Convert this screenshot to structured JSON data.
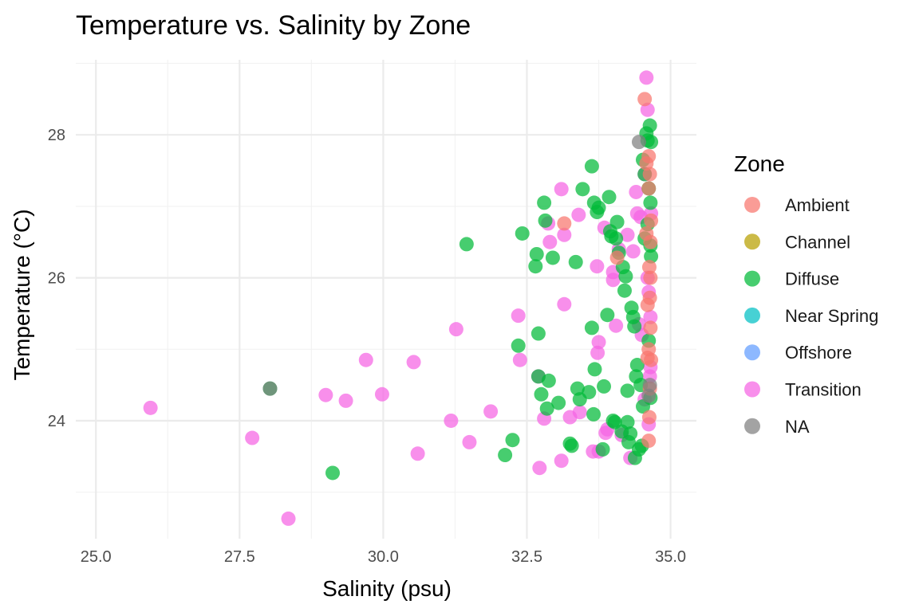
{
  "chart_data": {
    "type": "scatter",
    "title": "Temperature vs. Salinity by Zone",
    "xlabel": "Salinity (psu)",
    "ylabel": "Temperature (°C)",
    "xlim": [
      24.65,
      35.45
    ],
    "ylim": [
      22.35,
      29.05
    ],
    "x_ticks": [
      25.0,
      27.5,
      30.0,
      32.5,
      35.0
    ],
    "x_tick_labels": [
      "25.0",
      "27.5",
      "30.0",
      "32.5",
      "35.0"
    ],
    "y_ticks": [
      24,
      26,
      28
    ],
    "y_tick_labels": [
      "24",
      "26",
      "28"
    ],
    "grid": true,
    "legend": {
      "title": "Zone",
      "position": "right",
      "entries": [
        {
          "name": "Ambient",
          "color": "#F8766D"
        },
        {
          "name": "Channel",
          "color": "#B79F00"
        },
        {
          "name": "Diffuse",
          "color": "#00BA38"
        },
        {
          "name": "Near Spring",
          "color": "#00BFC4"
        },
        {
          "name": "Offshore",
          "color": "#619CFF"
        },
        {
          "name": "Transition",
          "color": "#F564E3"
        },
        {
          "name": "NA",
          "color": "#7F7F7F"
        }
      ]
    },
    "series": [
      {
        "name": "Transition",
        "points": [
          [
            25.95,
            24.18
          ],
          [
            27.72,
            23.76
          ],
          [
            28.35,
            22.63
          ],
          [
            29.0,
            24.36
          ],
          [
            29.35,
            24.28
          ],
          [
            29.7,
            24.85
          ],
          [
            29.98,
            24.37
          ],
          [
            30.53,
            24.82
          ],
          [
            30.6,
            23.54
          ],
          [
            31.18,
            24.0
          ],
          [
            31.27,
            25.28
          ],
          [
            31.5,
            23.7
          ],
          [
            31.87,
            24.13
          ],
          [
            32.35,
            25.47
          ],
          [
            32.38,
            24.85
          ],
          [
            32.7,
            24.62
          ],
          [
            32.72,
            23.34
          ],
          [
            32.8,
            24.03
          ],
          [
            32.87,
            26.76
          ],
          [
            32.9,
            26.5
          ],
          [
            33.1,
            27.24
          ],
          [
            33.1,
            23.44
          ],
          [
            33.15,
            26.6
          ],
          [
            33.15,
            25.63
          ],
          [
            33.25,
            24.05
          ],
          [
            33.4,
            26.88
          ],
          [
            33.42,
            24.12
          ],
          [
            33.65,
            23.57
          ],
          [
            33.72,
            26.16
          ],
          [
            33.73,
            24.95
          ],
          [
            33.75,
            25.1
          ],
          [
            33.75,
            23.57
          ],
          [
            33.85,
            26.7
          ],
          [
            33.87,
            23.83
          ],
          [
            33.9,
            23.88
          ],
          [
            34.0,
            26.08
          ],
          [
            34.0,
            25.97
          ],
          [
            34.05,
            25.33
          ],
          [
            34.1,
            26.4
          ],
          [
            34.15,
            23.8
          ],
          [
            34.25,
            26.6
          ],
          [
            34.3,
            23.48
          ],
          [
            34.35,
            26.37
          ],
          [
            34.4,
            27.2
          ],
          [
            34.42,
            26.9
          ],
          [
            34.45,
            25.35
          ],
          [
            34.48,
            26.85
          ],
          [
            34.5,
            25.2
          ],
          [
            34.55,
            27.45
          ],
          [
            34.55,
            24.3
          ],
          [
            34.58,
            28.8
          ],
          [
            34.6,
            28.35
          ],
          [
            34.6,
            26.0
          ],
          [
            34.62,
            23.95
          ],
          [
            34.62,
            25.8
          ],
          [
            34.64,
            24.62
          ],
          [
            34.65,
            25.45
          ],
          [
            34.65,
            24.75
          ],
          [
            34.66,
            26.9
          ]
        ]
      },
      {
        "name": "Diffuse",
        "points": [
          [
            28.03,
            24.45
          ],
          [
            29.12,
            23.27
          ],
          [
            31.45,
            26.47
          ],
          [
            32.12,
            23.52
          ],
          [
            32.25,
            23.73
          ],
          [
            32.42,
            26.62
          ],
          [
            32.35,
            25.05
          ],
          [
            32.65,
            26.16
          ],
          [
            32.67,
            26.33
          ],
          [
            32.7,
            25.22
          ],
          [
            32.7,
            24.62
          ],
          [
            32.75,
            24.37
          ],
          [
            32.8,
            27.05
          ],
          [
            32.82,
            26.8
          ],
          [
            32.85,
            24.17
          ],
          [
            32.88,
            24.56
          ],
          [
            32.95,
            26.28
          ],
          [
            33.05,
            24.25
          ],
          [
            33.25,
            23.68
          ],
          [
            33.28,
            23.65
          ],
          [
            33.35,
            26.22
          ],
          [
            33.38,
            24.45
          ],
          [
            33.42,
            24.3
          ],
          [
            33.47,
            27.24
          ],
          [
            33.58,
            24.4
          ],
          [
            33.63,
            27.56
          ],
          [
            33.63,
            25.3
          ],
          [
            33.66,
            24.09
          ],
          [
            33.67,
            27.05
          ],
          [
            33.68,
            24.72
          ],
          [
            33.72,
            26.92
          ],
          [
            33.75,
            26.98
          ],
          [
            33.82,
            23.6
          ],
          [
            33.84,
            24.48
          ],
          [
            33.9,
            25.48
          ],
          [
            33.93,
            27.13
          ],
          [
            33.95,
            26.65
          ],
          [
            33.97,
            26.58
          ],
          [
            34.0,
            24.0
          ],
          [
            34.03,
            23.98
          ],
          [
            34.05,
            26.55
          ],
          [
            34.07,
            26.78
          ],
          [
            34.1,
            26.35
          ],
          [
            34.15,
            23.85
          ],
          [
            34.17,
            26.15
          ],
          [
            34.2,
            25.82
          ],
          [
            34.22,
            26.02
          ],
          [
            34.25,
            23.98
          ],
          [
            34.25,
            24.42
          ],
          [
            34.27,
            23.7
          ],
          [
            34.3,
            23.82
          ],
          [
            34.32,
            25.58
          ],
          [
            34.35,
            25.45
          ],
          [
            34.37,
            25.32
          ],
          [
            34.38,
            23.48
          ],
          [
            34.4,
            24.62
          ],
          [
            34.42,
            24.78
          ],
          [
            34.45,
            23.6
          ],
          [
            34.48,
            24.5
          ],
          [
            34.5,
            23.65
          ],
          [
            34.52,
            24.2
          ],
          [
            34.52,
            27.65
          ],
          [
            34.55,
            27.45
          ],
          [
            34.55,
            26.55
          ],
          [
            34.58,
            28.02
          ],
          [
            34.6,
            27.92
          ],
          [
            34.6,
            26.75
          ],
          [
            34.62,
            27.25
          ],
          [
            34.62,
            25.12
          ],
          [
            34.64,
            28.13
          ],
          [
            34.65,
            27.05
          ],
          [
            34.65,
            26.45
          ],
          [
            34.65,
            24.32
          ],
          [
            34.66,
            27.9
          ],
          [
            34.66,
            26.3
          ]
        ]
      },
      {
        "name": "Ambient",
        "points": [
          [
            33.15,
            26.76
          ],
          [
            34.07,
            26.28
          ],
          [
            34.55,
            28.5
          ],
          [
            34.58,
            27.6
          ],
          [
            34.58,
            26.62
          ],
          [
            34.6,
            25.62
          ],
          [
            34.6,
            24.88
          ],
          [
            34.62,
            27.7
          ],
          [
            34.62,
            27.25
          ],
          [
            34.62,
            25.0
          ],
          [
            34.62,
            23.72
          ],
          [
            34.63,
            26.15
          ],
          [
            34.63,
            24.05
          ],
          [
            34.64,
            27.45
          ],
          [
            34.64,
            25.72
          ],
          [
            34.64,
            24.45
          ],
          [
            34.65,
            26.5
          ],
          [
            34.65,
            26.0
          ],
          [
            34.65,
            25.3
          ],
          [
            34.66,
            26.8
          ],
          [
            34.66,
            24.85
          ]
        ]
      },
      {
        "name": "NA",
        "points": [
          [
            28.03,
            24.45
          ],
          [
            34.45,
            27.9
          ],
          [
            34.62,
            24.35
          ],
          [
            34.64,
            24.5
          ]
        ]
      }
    ]
  }
}
